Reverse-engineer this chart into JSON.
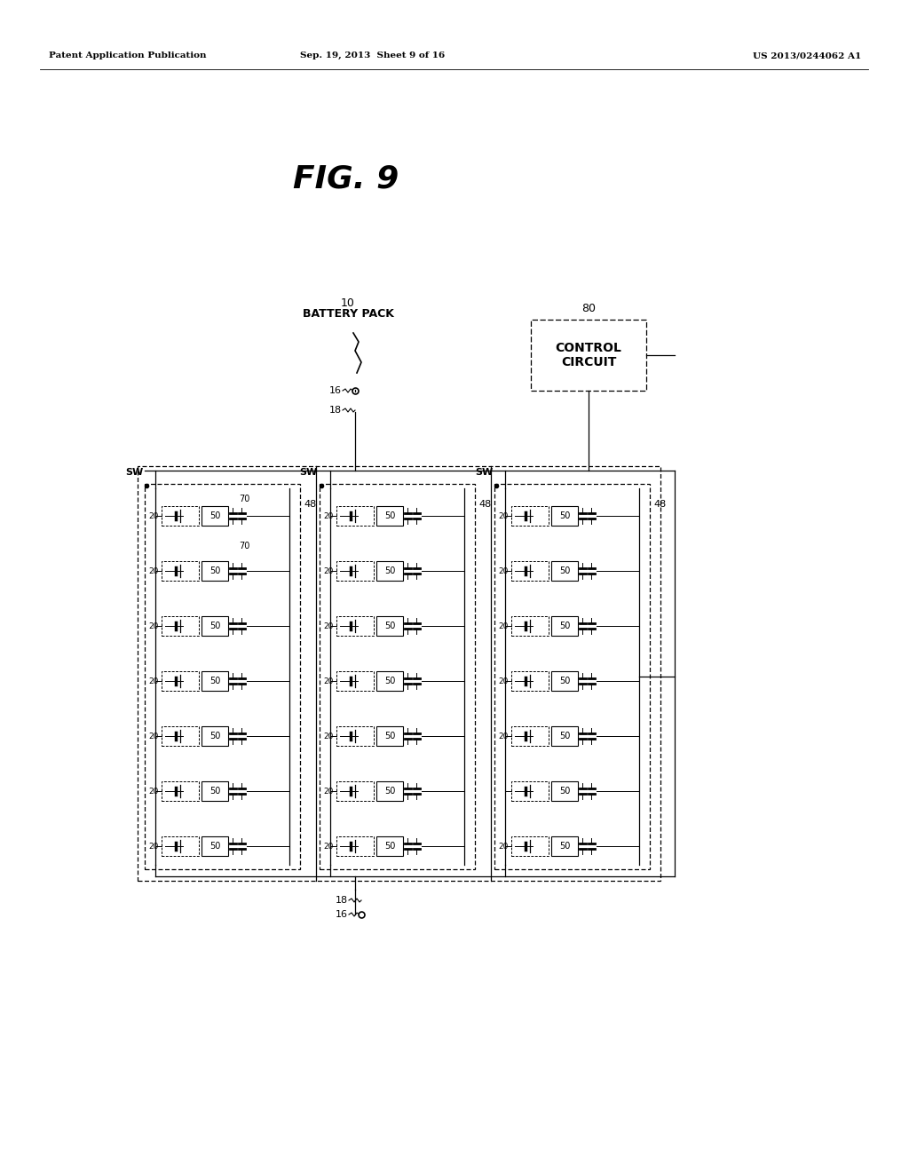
{
  "title": "FIG. 9",
  "header_left": "Patent Application Publication",
  "header_mid": "Sep. 19, 2013  Sheet 9 of 16",
  "header_right": "US 2013/0244062 A1",
  "bg_color": "#ffffff",
  "text_color": "#000000",
  "fig_title": "FIG. 9",
  "label_10": "10",
  "label_10b": "BATTERY PACK",
  "label_80": "80",
  "label_cc": "CONTROL\nCIRCUIT",
  "label_sw": "SW",
  "label_48": "48",
  "label_70a": "70",
  "label_70b": "70",
  "label_20": "20",
  "label_50": "50",
  "label_18": "18",
  "label_16": "16",
  "num_rows": 7,
  "num_cols": 3
}
